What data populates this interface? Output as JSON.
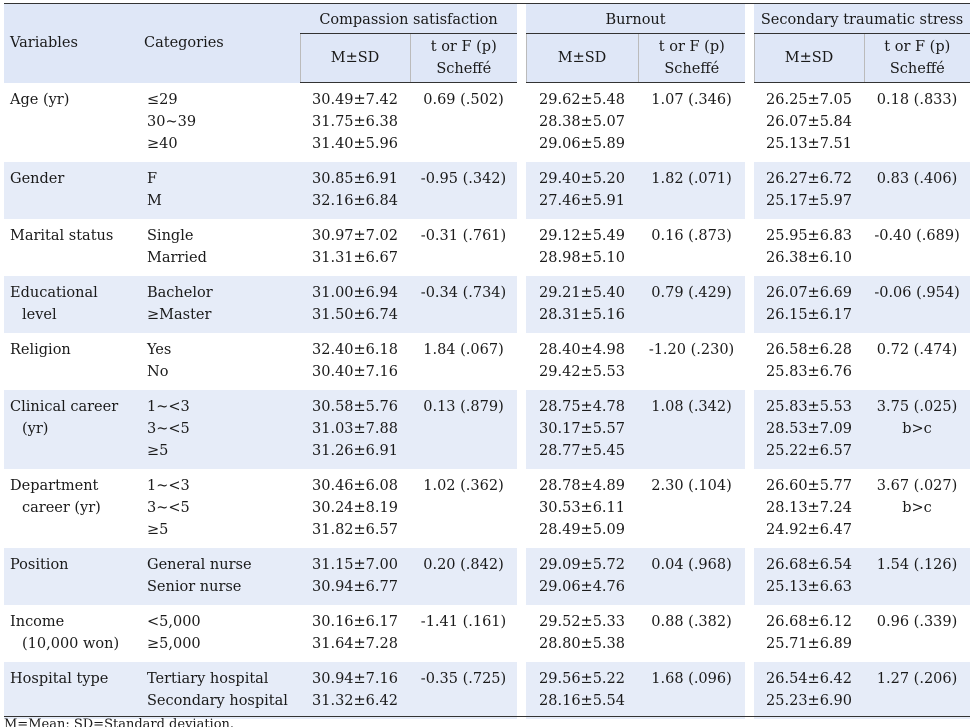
{
  "headers": {
    "variables": "Variables",
    "categories": "Categories",
    "groups": [
      "Compassion satisfaction",
      "Burnout",
      "Secondary traumatic stress"
    ],
    "ms": "M±SD",
    "tf_line1": "t or F (p)",
    "tf_line2": "Scheffé"
  },
  "rows": [
    {
      "variable": [
        "Age (yr)"
      ],
      "categories": [
        "≤29",
        "30~39",
        "≥40"
      ],
      "cs": {
        "ms": [
          "30.49±7.42",
          "31.75±6.38",
          "31.40±5.96"
        ],
        "tf": [
          "0.69 (.502)"
        ]
      },
      "bo": {
        "ms": [
          "29.62±5.48",
          "28.38±5.07",
          "29.06±5.89"
        ],
        "tf": [
          "1.07 (.346)"
        ]
      },
      "sts": {
        "ms": [
          "26.25±7.05",
          "26.07±5.84",
          "25.13±7.51"
        ],
        "tf": [
          "0.18 (.833)"
        ]
      }
    },
    {
      "variable": [
        "Gender"
      ],
      "categories": [
        "F",
        "M"
      ],
      "cs": {
        "ms": [
          "30.85±6.91",
          "32.16±6.84"
        ],
        "tf": [
          "-0.95 (.342)"
        ]
      },
      "bo": {
        "ms": [
          "29.40±5.20",
          "27.46±5.91"
        ],
        "tf": [
          "1.82 (.071)"
        ]
      },
      "sts": {
        "ms": [
          "26.27±6.72",
          "25.17±5.97"
        ],
        "tf": [
          "0.83 (.406)"
        ]
      }
    },
    {
      "variable": [
        "Marital status"
      ],
      "categories": [
        "Single",
        "Married"
      ],
      "cs": {
        "ms": [
          "30.97±7.02",
          "31.31±6.67"
        ],
        "tf": [
          "-0.31 (.761)"
        ]
      },
      "bo": {
        "ms": [
          "29.12±5.49",
          "28.98±5.10"
        ],
        "tf": [
          "0.16 (.873)"
        ]
      },
      "sts": {
        "ms": [
          "25.95±6.83",
          "26.38±6.10"
        ],
        "tf": [
          "-0.40 (.689)"
        ]
      }
    },
    {
      "variable": [
        "Educational",
        "level"
      ],
      "categories": [
        "Bachelor",
        "≥Master"
      ],
      "cs": {
        "ms": [
          "31.00±6.94",
          "31.50±6.74"
        ],
        "tf": [
          "-0.34 (.734)"
        ]
      },
      "bo": {
        "ms": [
          "29.21±5.40",
          "28.31±5.16"
        ],
        "tf": [
          "0.79 (.429)"
        ]
      },
      "sts": {
        "ms": [
          "26.07±6.69",
          "26.15±6.17"
        ],
        "tf": [
          "-0.06 (.954)"
        ]
      }
    },
    {
      "variable": [
        "Religion"
      ],
      "categories": [
        "Yes",
        "No"
      ],
      "cs": {
        "ms": [
          "32.40±6.18",
          "30.40±7.16"
        ],
        "tf": [
          "1.84 (.067)"
        ]
      },
      "bo": {
        "ms": [
          "28.40±4.98",
          "29.42±5.53"
        ],
        "tf": [
          "-1.20 (.230)"
        ]
      },
      "sts": {
        "ms": [
          "26.58±6.28",
          "25.83±6.76"
        ],
        "tf": [
          "0.72 (.474)"
        ]
      }
    },
    {
      "variable": [
        "Clinical career",
        "(yr)"
      ],
      "categories": [
        "1~<3",
        "3~<5",
        "≥5"
      ],
      "cs": {
        "ms": [
          "30.58±5.76",
          "31.03±7.88",
          "31.26±6.91"
        ],
        "tf": [
          "0.13 (.879)"
        ]
      },
      "bo": {
        "ms": [
          "28.75±4.78",
          "30.17±5.57",
          "28.77±5.45"
        ],
        "tf": [
          "1.08 (.342)"
        ]
      },
      "sts": {
        "ms": [
          "25.83±5.53",
          "28.53±7.09",
          "25.22±6.57"
        ],
        "tf": [
          "3.75 (.025)",
          "b>c"
        ]
      }
    },
    {
      "variable": [
        "Department",
        "career (yr)"
      ],
      "categories": [
        "1~<3",
        "3~<5",
        "≥5"
      ],
      "cs": {
        "ms": [
          "30.46±6.08",
          "30.24±8.19",
          "31.82±6.57"
        ],
        "tf": [
          "1.02 (.362)"
        ]
      },
      "bo": {
        "ms": [
          "28.78±4.89",
          "30.53±6.11",
          "28.49±5.09"
        ],
        "tf": [
          "2.30 (.104)"
        ]
      },
      "sts": {
        "ms": [
          "26.60±5.77",
          "28.13±7.24",
          "24.92±6.47"
        ],
        "tf": [
          "3.67 (.027)",
          "b>c"
        ]
      }
    },
    {
      "variable": [
        "Position"
      ],
      "categories": [
        "General nurse",
        "Senior nurse"
      ],
      "cs": {
        "ms": [
          "31.15±7.00",
          "30.94±6.77"
        ],
        "tf": [
          "0.20 (.842)"
        ]
      },
      "bo": {
        "ms": [
          "29.09±5.72",
          "29.06±4.76"
        ],
        "tf": [
          "0.04 (.968)"
        ]
      },
      "sts": {
        "ms": [
          "26.68±6.54",
          "25.13±6.63"
        ],
        "tf": [
          "1.54 (.126)"
        ]
      }
    },
    {
      "variable": [
        "Income",
        "(10,000 won)"
      ],
      "categories": [
        "<5,000",
        "≥5,000"
      ],
      "cs": {
        "ms": [
          "30.16±6.17",
          "31.64±7.28"
        ],
        "tf": [
          "-1.41 (.161)"
        ]
      },
      "bo": {
        "ms": [
          "29.52±5.33",
          "28.80±5.38"
        ],
        "tf": [
          "0.88 (.382)"
        ]
      },
      "sts": {
        "ms": [
          "26.68±6.12",
          "25.71±6.89"
        ],
        "tf": [
          "0.96 (.339)"
        ]
      }
    },
    {
      "variable": [
        "Hospital type"
      ],
      "categories": [
        "Tertiary hospital",
        "Secondary hospital"
      ],
      "cs": {
        "ms": [
          "30.94±7.16",
          "31.32±6.42"
        ],
        "tf": [
          "-0.35 (.725)"
        ]
      },
      "bo": {
        "ms": [
          "29.56±5.22",
          "28.16±5.54"
        ],
        "tf": [
          "1.68 (.096)"
        ]
      },
      "sts": {
        "ms": [
          "26.54±6.42",
          "25.23±6.90"
        ],
        "tf": [
          "1.27 (.206)"
        ]
      }
    }
  ],
  "footnote": "M=Mean; SD=Standard deviation."
}
